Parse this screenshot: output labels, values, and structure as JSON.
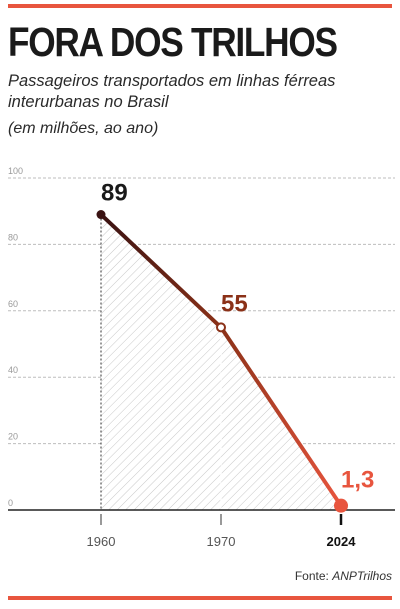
{
  "colors": {
    "accent": "#e8553e",
    "rule": "#e8553e",
    "dark_line": "#3a1212",
    "mid_line": "#8b3118"
  },
  "title": "FORA DOS TRILHOS",
  "subtitle": "Passageiros transportados em linhas férreas interurbanas no Brasil",
  "unit": "(em milhões, ao ano)",
  "source": {
    "label": "Fonte:",
    "name": "ANPTrilhos"
  },
  "chart_data": {
    "type": "line",
    "title": "FORA DOS TRILHOS",
    "x": [
      "1960",
      "1970",
      "2024"
    ],
    "values": [
      89,
      55,
      1.3
    ],
    "data_labels": [
      "89",
      "55",
      "1,3"
    ],
    "ylim": [
      0,
      100
    ],
    "yticks": [
      "0",
      "20",
      "40",
      "60",
      "80",
      "100"
    ],
    "grid": true,
    "point_colors": [
      "#3a1212",
      "#8b3118",
      "#e8553e"
    ]
  }
}
